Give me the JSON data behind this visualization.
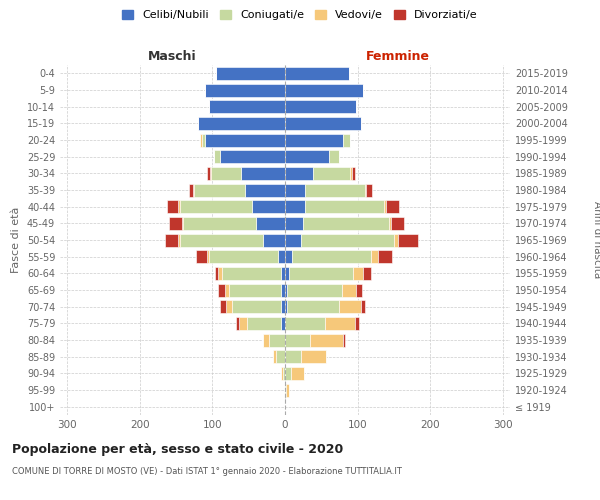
{
  "age_groups": [
    "100+",
    "95-99",
    "90-94",
    "85-89",
    "80-84",
    "75-79",
    "70-74",
    "65-69",
    "60-64",
    "55-59",
    "50-54",
    "45-49",
    "40-44",
    "35-39",
    "30-34",
    "25-29",
    "20-24",
    "15-19",
    "10-14",
    "5-9",
    "0-4"
  ],
  "birth_years": [
    "≤ 1919",
    "1920-1924",
    "1925-1929",
    "1930-1934",
    "1935-1939",
    "1940-1944",
    "1945-1949",
    "1950-1954",
    "1955-1959",
    "1960-1964",
    "1965-1969",
    "1970-1974",
    "1975-1979",
    "1980-1984",
    "1985-1989",
    "1990-1994",
    "1995-1999",
    "2000-2004",
    "2005-2009",
    "2010-2014",
    "2015-2019"
  ],
  "males": {
    "celibi": [
      0,
      0,
      0,
      0,
      0,
      5,
      5,
      5,
      5,
      10,
      30,
      40,
      45,
      55,
      60,
      90,
      110,
      120,
      105,
      110,
      95
    ],
    "coniugati": [
      0,
      0,
      3,
      12,
      22,
      48,
      68,
      72,
      82,
      95,
      115,
      100,
      100,
      70,
      42,
      8,
      5,
      0,
      0,
      0,
      0
    ],
    "vedovi": [
      0,
      0,
      2,
      5,
      8,
      10,
      8,
      5,
      5,
      3,
      3,
      2,
      2,
      2,
      2,
      0,
      2,
      0,
      0,
      0,
      0
    ],
    "divorziati": [
      0,
      0,
      0,
      0,
      0,
      5,
      8,
      10,
      5,
      15,
      18,
      18,
      15,
      5,
      3,
      0,
      0,
      0,
      0,
      0,
      0
    ]
  },
  "females": {
    "nubili": [
      0,
      0,
      0,
      0,
      0,
      0,
      3,
      3,
      5,
      10,
      22,
      25,
      28,
      28,
      38,
      60,
      80,
      105,
      98,
      108,
      88
    ],
    "coniugate": [
      0,
      2,
      8,
      22,
      35,
      55,
      72,
      75,
      88,
      108,
      128,
      118,
      108,
      82,
      52,
      14,
      10,
      0,
      0,
      0,
      0
    ],
    "vedove": [
      0,
      3,
      18,
      35,
      45,
      42,
      30,
      20,
      15,
      10,
      5,
      3,
      3,
      2,
      2,
      0,
      0,
      0,
      0,
      0,
      0
    ],
    "divorziate": [
      0,
      0,
      0,
      0,
      2,
      5,
      5,
      8,
      10,
      20,
      28,
      18,
      18,
      8,
      5,
      0,
      0,
      0,
      0,
      0,
      0
    ]
  },
  "color_celibi": "#4472C4",
  "color_coniugati": "#C6D9A0",
  "color_vedovi": "#F6C87A",
  "color_divorziati": "#C0362C",
  "xlim": 310,
  "title": "Popolazione per età, sesso e stato civile - 2020",
  "subtitle": "COMUNE DI TORRE DI MOSTO (VE) - Dati ISTAT 1° gennaio 2020 - Elaborazione TUTTITALIA.IT",
  "ylabel_left": "Fasce di età",
  "ylabel_right": "Anni di nascita",
  "xlabel_left": "Maschi",
  "xlabel_right": "Femmine"
}
